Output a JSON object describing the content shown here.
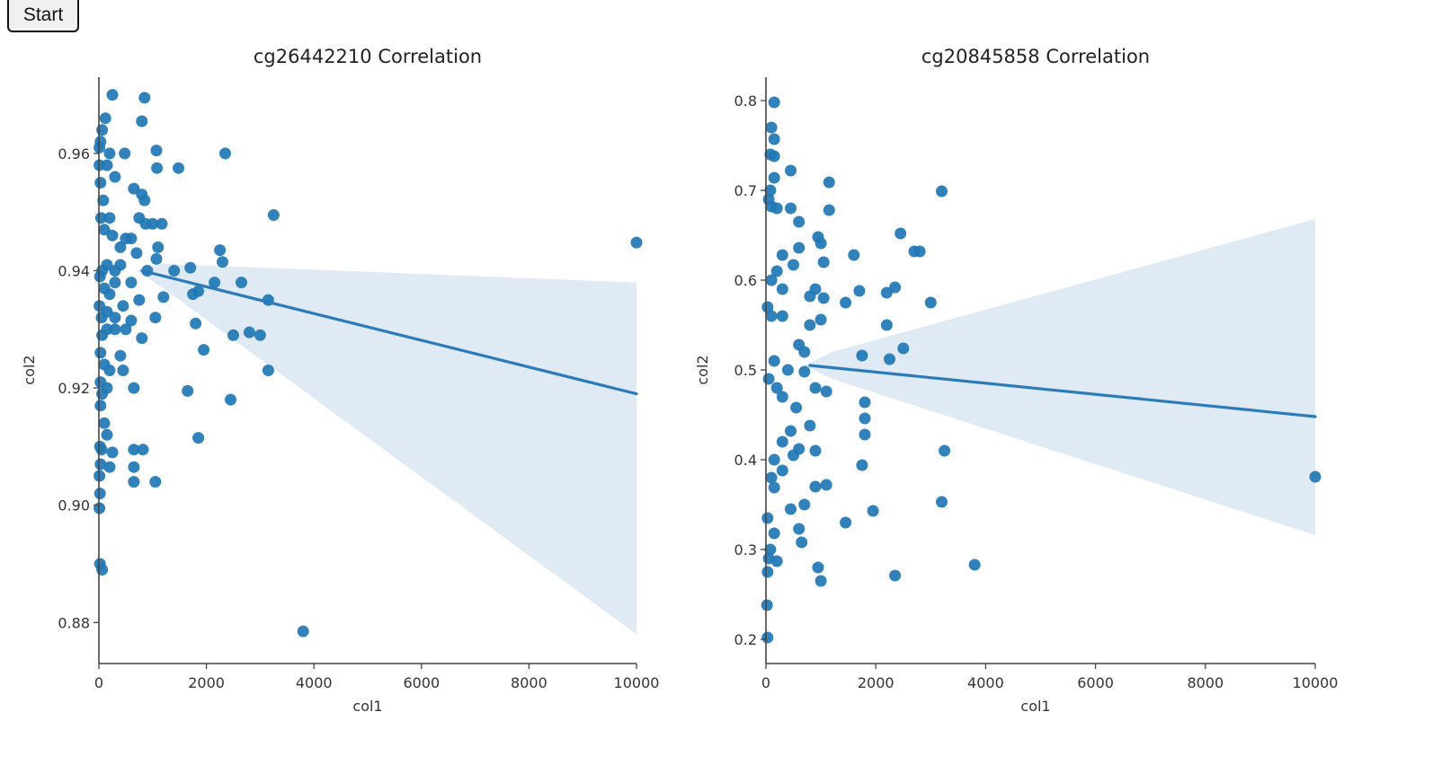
{
  "toolbar": {
    "start_label": "Start"
  },
  "colors": {
    "points": "#1f77b4",
    "band": "#dbe8f3",
    "line": "#2b7bba",
    "axis": "#444444"
  },
  "chart_data": [
    {
      "type": "scatter",
      "title": "cg26442210 Correlation",
      "xlabel": "col1",
      "ylabel": "col2",
      "xlim": [
        0,
        10000
      ],
      "ylim": [
        0.873,
        0.973
      ],
      "xticks": [
        0,
        2000,
        4000,
        6000,
        8000,
        10000
      ],
      "yticks": [
        0.88,
        0.9,
        0.92,
        0.94,
        0.96
      ],
      "ytick_labels": [
        "0.88",
        "0.90",
        "0.92",
        "0.94",
        "0.96"
      ],
      "regression": {
        "x": [
          800,
          10000
        ],
        "y": [
          0.94,
          0.919
        ]
      },
      "confidence_band": {
        "upper": [
          [
            700,
            0.94
          ],
          [
            1200,
            0.9412
          ],
          [
            10000,
            0.938
          ]
        ],
        "lower": [
          [
            700,
            0.94
          ],
          [
            1200,
            0.937
          ],
          [
            10000,
            0.878
          ]
        ]
      },
      "points": [
        [
          250,
          0.97
        ],
        [
          850,
          0.9695
        ],
        [
          120,
          0.966
        ],
        [
          800,
          0.9655
        ],
        [
          60,
          0.964
        ],
        [
          30,
          0.962
        ],
        [
          10,
          0.961
        ],
        [
          10,
          0.958
        ],
        [
          30,
          0.955
        ],
        [
          80,
          0.952
        ],
        [
          150,
          0.958
        ],
        [
          200,
          0.96
        ],
        [
          300,
          0.956
        ],
        [
          480,
          0.96
        ],
        [
          650,
          0.954
        ],
        [
          800,
          0.953
        ],
        [
          850,
          0.952
        ],
        [
          1070,
          0.9605
        ],
        [
          1080,
          0.9575
        ],
        [
          1480,
          0.9575
        ],
        [
          2350,
          0.96
        ],
        [
          40,
          0.949
        ],
        [
          100,
          0.947
        ],
        [
          200,
          0.949
        ],
        [
          250,
          0.946
        ],
        [
          400,
          0.944
        ],
        [
          500,
          0.9455
        ],
        [
          600,
          0.9455
        ],
        [
          750,
          0.949
        ],
        [
          870,
          0.948
        ],
        [
          1000,
          0.948
        ],
        [
          1170,
          0.948
        ],
        [
          1100,
          0.944
        ],
        [
          1070,
          0.942
        ],
        [
          700,
          0.943
        ],
        [
          400,
          0.941
        ],
        [
          300,
          0.94
        ],
        [
          150,
          0.941
        ],
        [
          60,
          0.94
        ],
        [
          20,
          0.939
        ],
        [
          100,
          0.937
        ],
        [
          200,
          0.936
        ],
        [
          300,
          0.938
        ],
        [
          600,
          0.938
        ],
        [
          900,
          0.94
        ],
        [
          1400,
          0.94
        ],
        [
          1700,
          0.9405
        ],
        [
          1750,
          0.936
        ],
        [
          1850,
          0.9365
        ],
        [
          2150,
          0.938
        ],
        [
          2250,
          0.9435
        ],
        [
          2300,
          0.9415
        ],
        [
          2650,
          0.938
        ],
        [
          3250,
          0.9495
        ],
        [
          3150,
          0.935
        ],
        [
          10000,
          0.9448
        ],
        [
          10,
          0.934
        ],
        [
          50,
          0.932
        ],
        [
          150,
          0.933
        ],
        [
          300,
          0.932
        ],
        [
          450,
          0.934
        ],
        [
          600,
          0.9315
        ],
        [
          750,
          0.935
        ],
        [
          1050,
          0.932
        ],
        [
          1200,
          0.9355
        ],
        [
          1800,
          0.931
        ],
        [
          60,
          0.929
        ],
        [
          150,
          0.93
        ],
        [
          300,
          0.93
        ],
        [
          500,
          0.93
        ],
        [
          800,
          0.9285
        ],
        [
          1950,
          0.9265
        ],
        [
          2500,
          0.929
        ],
        [
          2800,
          0.9295
        ],
        [
          3000,
          0.929
        ],
        [
          30,
          0.926
        ],
        [
          100,
          0.924
        ],
        [
          200,
          0.923
        ],
        [
          400,
          0.9255
        ],
        [
          450,
          0.923
        ],
        [
          3150,
          0.923
        ],
        [
          30,
          0.921
        ],
        [
          60,
          0.919
        ],
        [
          150,
          0.92
        ],
        [
          650,
          0.92
        ],
        [
          1650,
          0.9195
        ],
        [
          2450,
          0.918
        ],
        [
          30,
          0.917
        ],
        [
          100,
          0.914
        ],
        [
          150,
          0.912
        ],
        [
          1850,
          0.9115
        ],
        [
          20,
          0.91
        ],
        [
          50,
          0.9095
        ],
        [
          250,
          0.909
        ],
        [
          650,
          0.9095
        ],
        [
          820,
          0.9095
        ],
        [
          30,
          0.907
        ],
        [
          200,
          0.9065
        ],
        [
          650,
          0.9065
        ],
        [
          10,
          0.905
        ],
        [
          20,
          0.902
        ],
        [
          650,
          0.904
        ],
        [
          1050,
          0.904
        ],
        [
          10,
          0.8995
        ],
        [
          20,
          0.89
        ],
        [
          60,
          0.889
        ],
        [
          3800,
          0.8785
        ]
      ]
    },
    {
      "type": "scatter",
      "title": "cg20845858 Correlation",
      "xlabel": "col1",
      "ylabel": "col2",
      "xlim": [
        0,
        10000
      ],
      "ylim": [
        0.173,
        0.826
      ],
      "xticks": [
        0,
        2000,
        4000,
        6000,
        8000,
        10000
      ],
      "yticks": [
        0.2,
        0.3,
        0.4,
        0.5,
        0.6,
        0.7,
        0.8
      ],
      "ytick_labels": [
        "0.2",
        "0.3",
        "0.4",
        "0.5",
        "0.6",
        "0.7",
        "0.8"
      ],
      "regression": {
        "x": [
          800,
          10000
        ],
        "y": [
          0.505,
          0.448
        ]
      },
      "confidence_band": {
        "upper": [
          [
            700,
            0.505
          ],
          [
            1200,
            0.52
          ],
          [
            10000,
            0.668
          ]
        ],
        "lower": [
          [
            700,
            0.505
          ],
          [
            1200,
            0.49
          ],
          [
            10000,
            0.316
          ]
        ]
      },
      "points": [
        [
          150,
          0.798
        ],
        [
          100,
          0.77
        ],
        [
          150,
          0.757
        ],
        [
          80,
          0.74
        ],
        [
          150,
          0.738
        ],
        [
          450,
          0.722
        ],
        [
          150,
          0.714
        ],
        [
          1150,
          0.709
        ],
        [
          80,
          0.7
        ],
        [
          3200,
          0.699
        ],
        [
          50,
          0.69
        ],
        [
          100,
          0.682
        ],
        [
          200,
          0.68
        ],
        [
          450,
          0.68
        ],
        [
          1150,
          0.678
        ],
        [
          600,
          0.665
        ],
        [
          950,
          0.648
        ],
        [
          2450,
          0.652
        ],
        [
          1000,
          0.641
        ],
        [
          2700,
          0.632
        ],
        [
          2800,
          0.632
        ],
        [
          1600,
          0.628
        ],
        [
          600,
          0.636
        ],
        [
          300,
          0.628
        ],
        [
          1050,
          0.62
        ],
        [
          500,
          0.617
        ],
        [
          200,
          0.61
        ],
        [
          100,
          0.6
        ],
        [
          2350,
          0.592
        ],
        [
          2200,
          0.586
        ],
        [
          1700,
          0.588
        ],
        [
          1050,
          0.58
        ],
        [
          900,
          0.59
        ],
        [
          800,
          0.582
        ],
        [
          300,
          0.59
        ],
        [
          1450,
          0.575
        ],
        [
          3000,
          0.575
        ],
        [
          30,
          0.57
        ],
        [
          100,
          0.56
        ],
        [
          300,
          0.56
        ],
        [
          1000,
          0.556
        ],
        [
          800,
          0.55
        ],
        [
          2200,
          0.55
        ],
        [
          600,
          0.528
        ],
        [
          700,
          0.52
        ],
        [
          2500,
          0.524
        ],
        [
          1750,
          0.516
        ],
        [
          2250,
          0.512
        ],
        [
          150,
          0.51
        ],
        [
          400,
          0.5
        ],
        [
          700,
          0.498
        ],
        [
          900,
          0.48
        ],
        [
          1100,
          0.476
        ],
        [
          50,
          0.49
        ],
        [
          200,
          0.48
        ],
        [
          300,
          0.47
        ],
        [
          550,
          0.458
        ],
        [
          1800,
          0.464
        ],
        [
          1800,
          0.446
        ],
        [
          800,
          0.438
        ],
        [
          450,
          0.432
        ],
        [
          300,
          0.42
        ],
        [
          1800,
          0.428
        ],
        [
          600,
          0.412
        ],
        [
          900,
          0.41
        ],
        [
          3250,
          0.41
        ],
        [
          500,
          0.405
        ],
        [
          150,
          0.4
        ],
        [
          1750,
          0.394
        ],
        [
          300,
          0.388
        ],
        [
          100,
          0.38
        ],
        [
          900,
          0.37
        ],
        [
          1100,
          0.372
        ],
        [
          150,
          0.369
        ],
        [
          700,
          0.35
        ],
        [
          3200,
          0.353
        ],
        [
          450,
          0.345
        ],
        [
          1950,
          0.343
        ],
        [
          30,
          0.335
        ],
        [
          1450,
          0.33
        ],
        [
          600,
          0.323
        ],
        [
          150,
          0.318
        ],
        [
          650,
          0.308
        ],
        [
          80,
          0.3
        ],
        [
          50,
          0.29
        ],
        [
          200,
          0.287
        ],
        [
          3800,
          0.283
        ],
        [
          950,
          0.28
        ],
        [
          30,
          0.275
        ],
        [
          2350,
          0.271
        ],
        [
          1000,
          0.265
        ],
        [
          10000,
          0.381
        ],
        [
          20,
          0.238
        ],
        [
          30,
          0.202
        ]
      ]
    }
  ]
}
